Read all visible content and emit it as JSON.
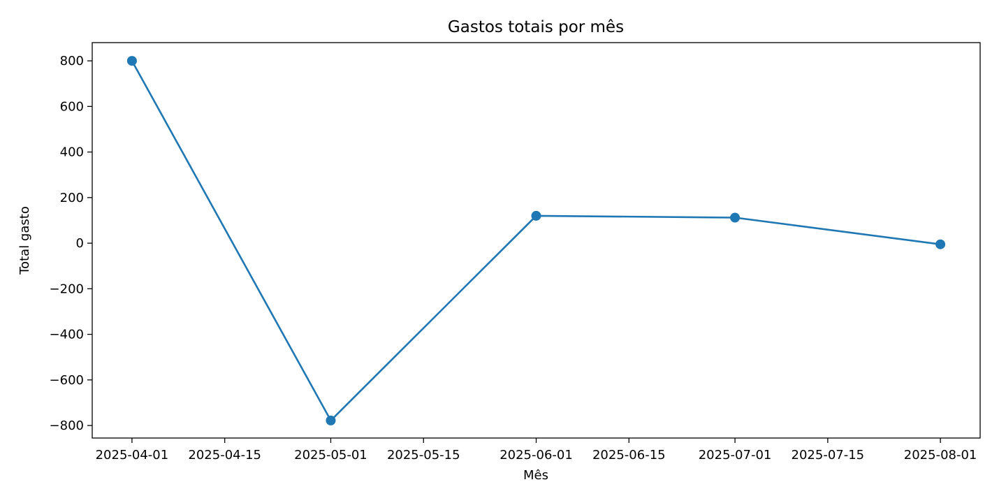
{
  "chart_data": {
    "type": "line",
    "title": "Gastos totais por mês",
    "xlabel": "Mês",
    "ylabel": "Total gasto",
    "x_ticks": [
      "2025-04-01",
      "2025-04-15",
      "2025-05-01",
      "2025-05-15",
      "2025-06-01",
      "2025-06-15",
      "2025-07-01",
      "2025-07-15",
      "2025-08-01"
    ],
    "y_ticks": [
      800,
      600,
      400,
      200,
      0,
      -200,
      -400,
      -600,
      -800
    ],
    "y_tick_labels": [
      "800",
      "600",
      "400",
      "200",
      "0",
      "−200",
      "−400",
      "−600",
      "−800"
    ],
    "ylim": [
      -855,
      880
    ],
    "xlim": [
      "2025-03-26",
      "2025-08-07"
    ],
    "grid": false,
    "series": [
      {
        "color": "#1f77b4",
        "marker": "circle",
        "x": [
          "2025-04-01",
          "2025-05-01",
          "2025-06-01",
          "2025-07-01",
          "2025-08-01"
        ],
        "values": [
          800,
          -778,
          120,
          112,
          -5
        ]
      }
    ]
  }
}
